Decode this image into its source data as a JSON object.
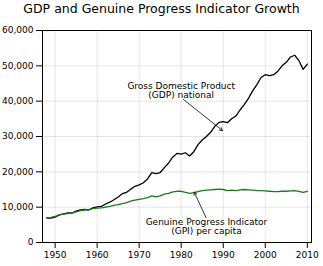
{
  "chart_data": {
    "type": "line",
    "title": "GDP and Genuine Progress Indicator Growth",
    "x": [
      1948,
      1949,
      1950,
      1951,
      1952,
      1953,
      1954,
      1955,
      1956,
      1957,
      1958,
      1959,
      1960,
      1961,
      1962,
      1963,
      1964,
      1965,
      1966,
      1967,
      1968,
      1969,
      1970,
      1971,
      1972,
      1973,
      1974,
      1975,
      1976,
      1977,
      1978,
      1979,
      1980,
      1981,
      1982,
      1983,
      1984,
      1985,
      1986,
      1987,
      1988,
      1989,
      1990,
      1991,
      1992,
      1993,
      1994,
      1995,
      1996,
      1997,
      1998,
      1999,
      2000,
      2001,
      2002,
      2003,
      2004,
      2005,
      2006,
      2007,
      2008,
      2009,
      2010
    ],
    "series": [
      {
        "color": "#000000",
        "values": [
          7000,
          6900,
          7200,
          7800,
          8100,
          8400,
          8300,
          8900,
          9200,
          9400,
          9200,
          9800,
          10100,
          10200,
          10900,
          11400,
          12100,
          12900,
          13800,
          14200,
          15100,
          15900,
          16300,
          16900,
          18000,
          19800,
          19500,
          19800,
          21200,
          22500,
          24200,
          25200,
          25000,
          25400,
          24500,
          25700,
          27700,
          29000,
          30000,
          31200,
          32900,
          34000,
          34200,
          33900,
          35000,
          35800,
          37500,
          39000,
          40800,
          42900,
          44700,
          46700,
          47500,
          47200,
          47500,
          48500,
          50000,
          51000,
          52500,
          53000,
          51500,
          49000,
          50500
        ]
      },
      {
        "color": "#1a7a1a",
        "values": [
          7000,
          7100,
          7400,
          7800,
          8000,
          8200,
          8400,
          8700,
          9000,
          9200,
          9300,
          9600,
          9700,
          9800,
          10000,
          10200,
          10500,
          10700,
          11000,
          11300,
          11700,
          12000,
          12200,
          12400,
          12700,
          13200,
          12900,
          13200,
          13700,
          13900,
          14300,
          14500,
          14500,
          14200,
          13900,
          14100,
          14400,
          14700,
          14800,
          14900,
          15000,
          15100,
          15000,
          14700,
          14800,
          14700,
          14900,
          15000,
          14900,
          14800,
          14700,
          14700,
          14600,
          14500,
          14400,
          14400,
          14500,
          14500,
          14600,
          14700,
          14500,
          14200,
          14500
        ]
      }
    ],
    "xlim": [
      1947,
      2011
    ],
    "ylim": [
      0,
      60000
    ],
    "xticks": [
      1950,
      1960,
      1970,
      1980,
      1990,
      2000,
      2010
    ],
    "yticks": [
      0,
      {
        "value": 10000,
        "label": "10,000"
      },
      {
        "value": 20000,
        "label": "20,000"
      },
      {
        "value": 30000,
        "label": "30,000"
      },
      {
        "value": 40000,
        "label": "40,000"
      },
      {
        "value": 50000,
        "label": "50,000"
      },
      {
        "value": 60000,
        "label": "60,000"
      }
    ],
    "grid": true,
    "annotations": [
      {
        "text": "Gross Domestic Product\n(GDP) national",
        "x": 1990,
        "y": 31500,
        "text_x": 1980,
        "text_y": 41000
      },
      {
        "text": "Genuine Progress Indicator\n(GPI) per capita",
        "x": 1983,
        "y": 14500,
        "text_x": 1986,
        "text_y": 6800
      }
    ]
  }
}
